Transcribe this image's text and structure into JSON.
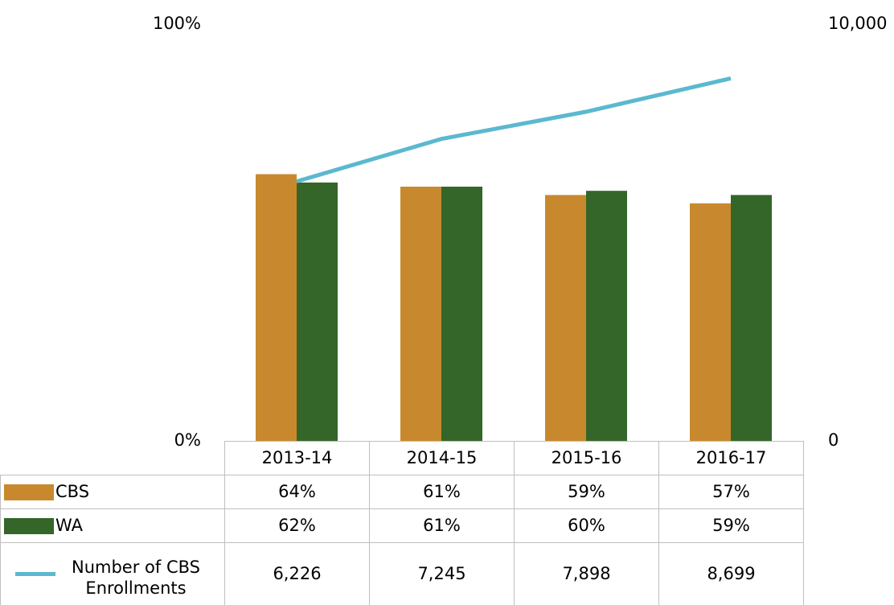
{
  "chart_data": {
    "type": "bar",
    "categories": [
      "2013-14",
      "2014-15",
      "2015-16",
      "2016-17"
    ],
    "series": [
      {
        "name": "CBS",
        "color": "#c8892e",
        "values": [
          64,
          61,
          59,
          57
        ],
        "value_labels": [
          "64%",
          "61%",
          "59%",
          "57%"
        ]
      },
      {
        "name": "WA",
        "color": "#336628",
        "values": [
          62,
          61,
          60,
          59
        ],
        "value_labels": [
          "62%",
          "61%",
          "60%",
          "59%"
        ]
      },
      {
        "name": "Number of CBS Enrollments",
        "type": "line",
        "axis": "y2",
        "color": "#5bb8d0",
        "values": [
          6226,
          7245,
          7898,
          8699
        ],
        "value_labels": [
          "6,226",
          "7,245",
          "7,898",
          "8,699"
        ]
      }
    ],
    "ylim": [
      0,
      100
    ],
    "yticks": [
      {
        "value": 0,
        "label": "0%"
      },
      {
        "value": 100,
        "label": "100%"
      }
    ],
    "y2lim": [
      0,
      10000
    ],
    "y2ticks": [
      0,
      {
        "value": 10000,
        "label": "10,000"
      }
    ],
    "grid": false
  }
}
